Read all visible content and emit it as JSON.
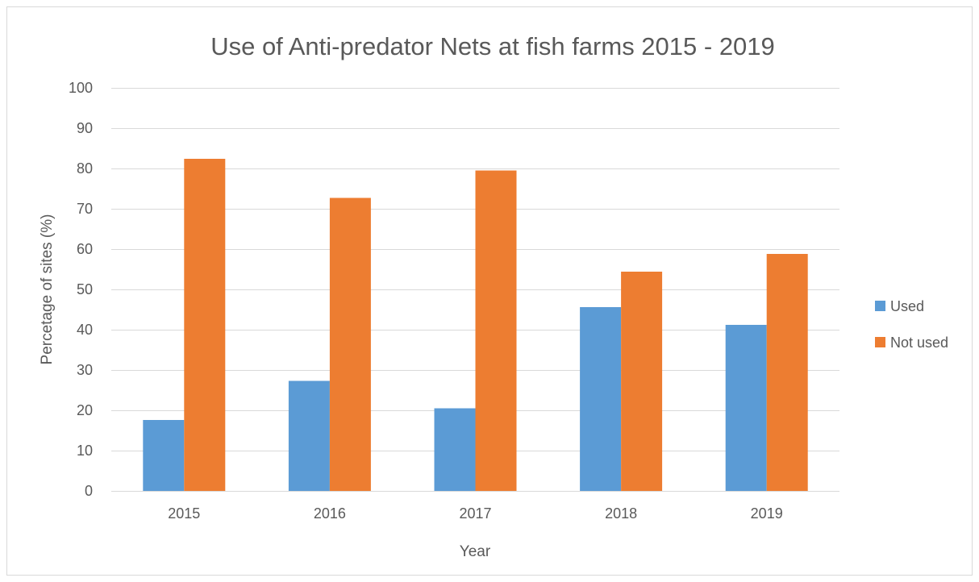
{
  "chart_data": {
    "type": "bar",
    "title": "Use of Anti-predator Nets at fish farms 2015 - 2019",
    "xlabel": "Year",
    "ylabel": "Percetage of sites (%)",
    "categories": [
      "2015",
      "2016",
      "2017",
      "2018",
      "2019"
    ],
    "series": [
      {
        "name": "Used",
        "color": "#5b9bd5",
        "values": [
          17.6,
          27.3,
          20.5,
          45.6,
          41.2
        ]
      },
      {
        "name": "Not used",
        "color": "#ed7d31",
        "values": [
          82.4,
          72.7,
          79.5,
          54.4,
          58.8
        ]
      }
    ],
    "ylim": [
      0,
      100
    ],
    "yticks": [
      "0",
      "10",
      "20",
      "30",
      "40",
      "50",
      "60",
      "70",
      "80",
      "90",
      "100"
    ],
    "grid": true,
    "legend_position": "right"
  }
}
